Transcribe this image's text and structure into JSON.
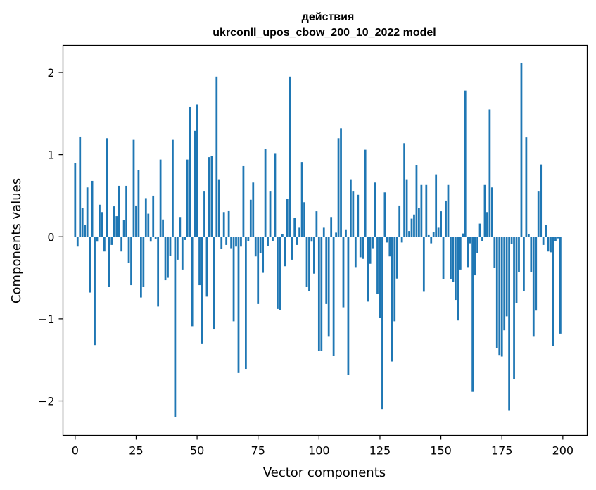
{
  "chart_data": {
    "type": "bar",
    "title": "действия",
    "subtitle": "ukrconll_upos_cbow_200_10_2022 model",
    "xlabel": "Vector components",
    "ylabel": "Components values",
    "xlim": [
      -5,
      210
    ],
    "ylim": [
      -2.42,
      2.33
    ],
    "xticks": [
      0,
      25,
      50,
      75,
      100,
      125,
      150,
      175,
      200
    ],
    "yticks": [
      -2,
      -1,
      0,
      1,
      2
    ],
    "ytick_labels": [
      "−2",
      "−1",
      "0",
      "1",
      "2"
    ],
    "bar_color": "#1f77b4",
    "grid": false,
    "values": [
      0.9,
      -0.12,
      1.22,
      0.35,
      0.14,
      0.6,
      -0.68,
      0.68,
      -1.32,
      -0.06,
      0.39,
      0.3,
      -0.18,
      1.2,
      -0.61,
      -0.1,
      0.37,
      0.25,
      0.62,
      -0.18,
      0.2,
      0.62,
      -0.32,
      -0.59,
      1.18,
      0.38,
      0.81,
      -0.74,
      -0.61,
      0.47,
      0.28,
      -0.06,
      0.5,
      -0.03,
      -0.85,
      0.94,
      0.21,
      -0.53,
      -0.5,
      -0.23,
      1.18,
      -2.2,
      -0.28,
      0.24,
      -0.4,
      -0.04,
      0.94,
      1.58,
      -1.09,
      1.29,
      1.61,
      -0.59,
      -1.3,
      0.55,
      -0.73,
      0.97,
      0.98,
      -1.13,
      1.95,
      0.7,
      -0.15,
      0.3,
      -0.1,
      0.32,
      -0.14,
      -1.03,
      -0.12,
      -1.66,
      -0.12,
      0.86,
      -1.61,
      -0.05,
      0.45,
      0.66,
      -0.24,
      -0.82,
      -0.2,
      -0.44,
      1.07,
      -0.11,
      0.55,
      -0.05,
      1.01,
      -0.88,
      -0.89,
      0.03,
      -0.36,
      0.46,
      1.95,
      -0.28,
      0.23,
      -0.1,
      0.11,
      0.91,
      0.42,
      -0.61,
      -0.66,
      -0.06,
      -0.45,
      0.31,
      -1.39,
      -1.39,
      0.11,
      -0.82,
      -1.21,
      0.24,
      -1.45,
      0.05,
      1.2,
      1.32,
      -0.86,
      0.09,
      -1.68,
      0.7,
      0.55,
      -0.37,
      0.51,
      -0.25,
      -0.27,
      1.06,
      -0.79,
      -0.33,
      -0.14,
      0.66,
      -0.7,
      -0.99,
      -2.1,
      0.54,
      -0.07,
      -0.24,
      -1.52,
      -1.03,
      -0.51,
      0.38,
      -0.07,
      1.14,
      0.7,
      0.07,
      0.22,
      0.27,
      0.87,
      0.35,
      0.63,
      -0.67,
      0.63,
      0.02,
      -0.08,
      0.06,
      0.76,
      0.11,
      0.31,
      -0.52,
      0.44,
      0.63,
      -0.52,
      -0.55,
      -0.77,
      -1.02,
      -0.4,
      0.04,
      1.78,
      -0.37,
      -0.08,
      -1.89,
      -0.47,
      -0.2,
      0.16,
      -0.05,
      0.63,
      0.3,
      1.55,
      0.6,
      -0.38,
      -1.36,
      -1.44,
      -1.46,
      -1.14,
      -0.97,
      -2.12,
      -0.09,
      -1.73,
      -0.81,
      -0.43,
      2.12,
      -0.66,
      1.21,
      0.03,
      -0.43,
      -1.21,
      -0.9,
      0.55,
      0.88,
      -0.1,
      0.14,
      -0.18,
      -0.19,
      -1.33,
      -0.05,
      -0.02,
      -1.18
    ]
  }
}
